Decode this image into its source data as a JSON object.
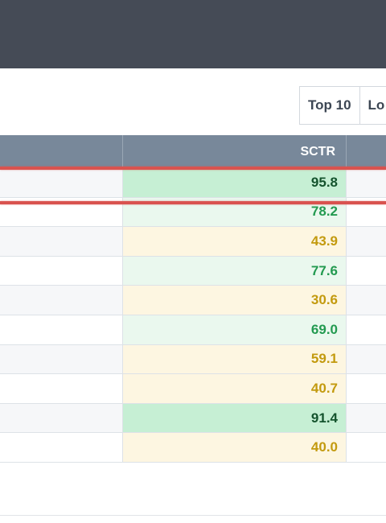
{
  "filters": {
    "top10_label": "Top 10",
    "next_label_partial": "Lo"
  },
  "table": {
    "sctr_header": "SCTR",
    "rows": [
      {
        "sctr": "95.8",
        "level": "strong",
        "highlighted": true
      },
      {
        "sctr": "78.2",
        "level": "good"
      },
      {
        "sctr": "43.9",
        "level": "mid"
      },
      {
        "sctr": "77.6",
        "level": "good"
      },
      {
        "sctr": "30.6",
        "level": "mid"
      },
      {
        "sctr": "69.0",
        "level": "good"
      },
      {
        "sctr": "59.1",
        "level": "mid"
      },
      {
        "sctr": "40.7",
        "level": "mid"
      },
      {
        "sctr": "91.4",
        "level": "strong"
      },
      {
        "sctr": "40.0",
        "level": "mid"
      }
    ]
  },
  "colors": {
    "header_bar": "#454b56",
    "table_header": "#78889a",
    "highlight": "#d9534f",
    "strong_bg": "#c6efd4",
    "strong_text": "#14532d",
    "good_bg": "#eaf8ee",
    "good_text": "#239a50",
    "mid_bg": "#fdf6e1",
    "mid_text": "#c39a0e"
  }
}
